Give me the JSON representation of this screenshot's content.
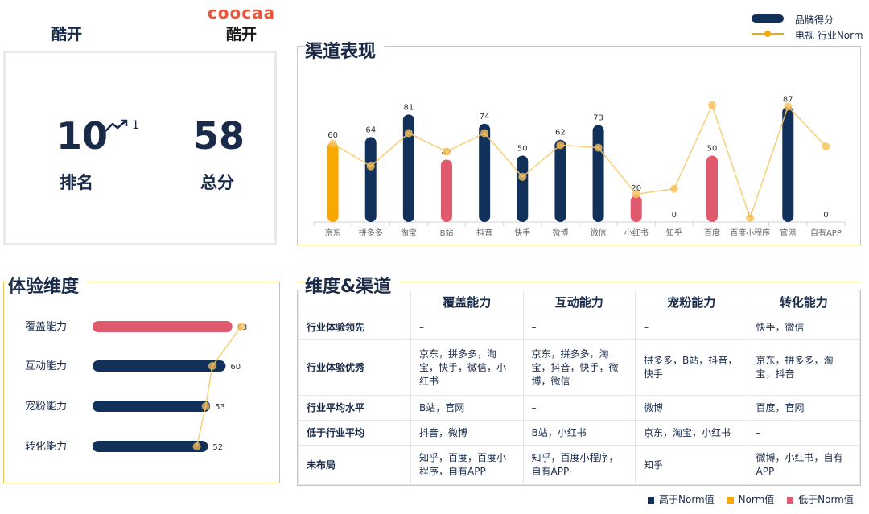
{
  "brand": {
    "name": "酷开",
    "logo_text": "coocaa",
    "logo_cn": "酷开"
  },
  "score_card": {
    "rank": "10",
    "rank_change": "1",
    "rank_label": "排名",
    "total": "58",
    "total_label": "总分"
  },
  "legend": {
    "bar_label": "品牌得分",
    "line_label": "电视 行业Norm"
  },
  "colors": {
    "above": "#11305a",
    "norm": "#f9a800",
    "below": "#e05a6e",
    "line": "#f7c96a",
    "accent": "#f2c262"
  },
  "chart_data": [
    {
      "type": "bar",
      "title": "渠道表现",
      "categories": [
        "京东",
        "拼多多",
        "淘宝",
        "B站",
        "抖音",
        "快手",
        "微博",
        "微信",
        "小红书",
        "知乎",
        "百度",
        "百度小程序",
        "官网",
        "自有APP"
      ],
      "series": [
        {
          "name": "品牌得分",
          "values": [
            60,
            64,
            81,
            47,
            74,
            50,
            62,
            73,
            20,
            0,
            50,
            0,
            87,
            0
          ],
          "status": [
            "norm",
            "above",
            "above",
            "below",
            "above",
            "above",
            "above",
            "above",
            "below",
            "none",
            "below",
            "none",
            "above",
            "none"
          ]
        },
        {
          "name": "电视 行业Norm",
          "type": "line",
          "values": [
            59,
            42,
            67,
            53,
            67,
            34,
            58,
            56,
            21,
            25,
            88,
            3,
            87,
            57
          ]
        }
      ],
      "ylim": [
        0,
        100
      ]
    },
    {
      "type": "bar",
      "orientation": "horizontal",
      "title": "体验维度",
      "categories": [
        "覆盖能力",
        "互动能力",
        "宠粉能力",
        "转化能力"
      ],
      "series": [
        {
          "name": "品牌得分",
          "values": [
            63,
            60,
            53,
            52
          ],
          "status": [
            "below",
            "above",
            "above",
            "above"
          ]
        },
        {
          "name": "电视 行业Norm",
          "type": "line",
          "values": [
            67,
            54,
            51,
            47
          ]
        }
      ],
      "xlim": [
        0,
        70
      ]
    }
  ],
  "matrix": {
    "title": "维度&渠道",
    "columns": [
      "覆盖能力",
      "互动能力",
      "宠粉能力",
      "转化能力"
    ],
    "rows": [
      {
        "label": "行业体验领先",
        "cells": [
          "–",
          "–",
          "–",
          "快手，微信"
        ]
      },
      {
        "label": "行业体验优秀",
        "cells": [
          "京东，拼多多，淘宝，快手，微信，小红书",
          "京东，拼多多，淘宝，抖音，快手，微博，微信",
          "拼多多，B站，抖音，快手",
          "京东，拼多多，淘宝，抖音"
        ]
      },
      {
        "label": "行业平均水平",
        "cells": [
          "B站，官网",
          "–",
          "微博",
          "百度，官网"
        ]
      },
      {
        "label": "低于行业平均",
        "cells": [
          "抖音，微博",
          "B站，小红书",
          "京东，淘宝，小红书",
          "–"
        ]
      },
      {
        "label": "未布局",
        "cells": [
          "知乎，百度，百度小程序，自有APP",
          "知乎，百度小程序，自有APP",
          "知乎",
          "微博，小红书，自有APP"
        ]
      }
    ]
  },
  "bottom_legend": [
    {
      "label": "高于Norm值",
      "color": "#11305a"
    },
    {
      "label": "Norm值",
      "color": "#f9a800"
    },
    {
      "label": "低于Norm值",
      "color": "#e05a6e"
    }
  ]
}
